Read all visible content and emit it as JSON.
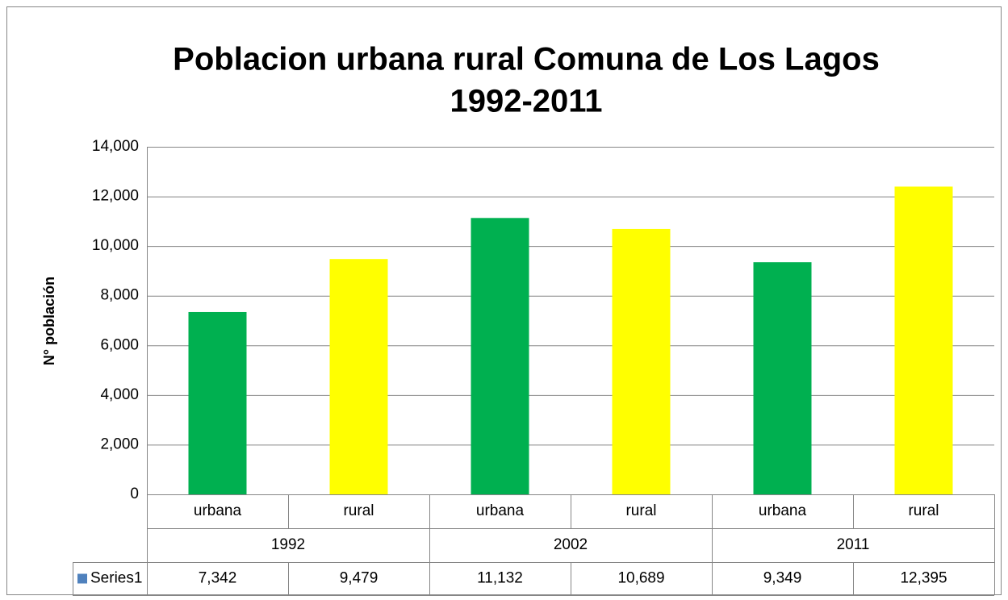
{
  "chart_data": {
    "type": "bar",
    "title": [
      "Poblacion urbana rural Comuna de Los Lagos",
      "1992-2011"
    ],
    "ylabel": "N° población",
    "categories": [
      "urbana",
      "rural",
      "urbana",
      "rural",
      "urbana",
      "rural"
    ],
    "category_groups": [
      "1992",
      "2002",
      "2011"
    ],
    "series": [
      {
        "name": "Series1",
        "color": "#4f81bd",
        "values": [
          7342,
          9479,
          11132,
          10689,
          9349,
          12395
        ],
        "value_labels": [
          "7,342",
          "9,479",
          "11,132",
          "10,689",
          "9,349",
          "12,395"
        ],
        "colors": [
          "#00b050",
          "#ffff00",
          "#00b050",
          "#ffff00",
          "#00b050",
          "#ffff00"
        ]
      }
    ],
    "ylim": [
      0,
      14000
    ],
    "yticks": [
      0,
      {
        "value": 2000,
        "label": "2,000"
      },
      {
        "value": 4000,
        "label": "4,000"
      },
      {
        "value": 6000,
        "label": "6,000"
      },
      {
        "value": 8000,
        "label": "8,000"
      },
      {
        "value": 10000,
        "label": "10,000"
      },
      {
        "value": 12000,
        "label": "12,000"
      },
      {
        "value": 14000,
        "label": "14,000"
      }
    ],
    "grid": true,
    "data_table": true
  }
}
